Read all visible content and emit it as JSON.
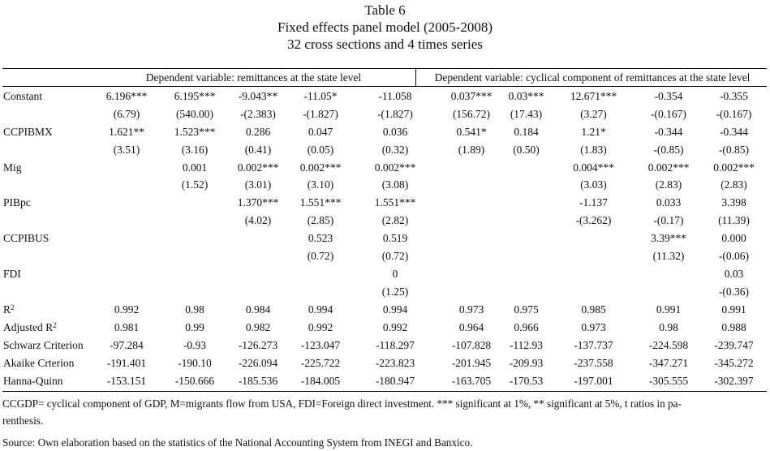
{
  "title": {
    "line1": "Table 6",
    "line2": "Fixed effects panel model (2005-2008)",
    "line3": "32 cross sections and 4 times series"
  },
  "headers": {
    "left": "Dependent variable: remittances at the state level",
    "right": "Dependent variable: cyclical component of remittances at the state level"
  },
  "rows": [
    {
      "label": "Constant",
      "values": [
        "6.196***",
        "6.195***",
        "-9.043**",
        "-11.05*",
        "-11.058",
        "0.037***",
        "0.03***",
        "12.671***",
        "-0.354",
        "-0.355"
      ]
    },
    {
      "label": "",
      "values": [
        "(6.79)",
        "(540.00)",
        "-(2.383)",
        "-(1.827)",
        "-(1.827)",
        "(156.72)",
        "(17.43)",
        "(3.27)",
        "-(0.167)",
        "-(0.167)"
      ]
    },
    {
      "label": "CCPIBMX",
      "values": [
        "1.621**",
        "1.523***",
        "0.286",
        "0.047",
        "0.036",
        "0.541*",
        "0.184",
        "1.21*",
        "-0.344",
        "-0.344"
      ]
    },
    {
      "label": "",
      "values": [
        "(3.51)",
        "(3.16)",
        "(0.41)",
        "(0.05)",
        "(0.32)",
        "(1.89)",
        "(0.50)",
        "(1.83)",
        "-(0.85)",
        "-(0.85)"
      ]
    },
    {
      "label": "Mig",
      "values": [
        "",
        "0.001",
        "0.002***",
        "0.002***",
        "0.002***",
        "",
        "",
        "0.004***",
        "0.002***",
        "0.002***"
      ]
    },
    {
      "label": "",
      "values": [
        "",
        "(1.52)",
        "(3.01)",
        "(3.10)",
        "(3.08)",
        "",
        "",
        "(3.03)",
        "(2.83)",
        "(2.83)"
      ]
    },
    {
      "label": "PIBpc",
      "values": [
        "",
        "",
        "1.370***",
        "1.551***",
        "1.551***",
        "",
        "",
        "-1.137",
        "0.033",
        "3.398"
      ]
    },
    {
      "label": "",
      "values": [
        "",
        "",
        "(4.02)",
        "(2.85)",
        "(2.82)",
        "",
        "",
        "-(3.262)",
        "-(0.17)",
        "(11.39)"
      ]
    },
    {
      "label": "CCPIBUS",
      "values": [
        "",
        "",
        "",
        "0.523",
        "0.519",
        "",
        "",
        "",
        "3.39***",
        "0.000"
      ]
    },
    {
      "label": "",
      "values": [
        "",
        "",
        "",
        "(0.72)",
        "(0.72)",
        "",
        "",
        "",
        "(11.32)",
        "-(0.06)"
      ]
    },
    {
      "label": "FDI",
      "values": [
        "",
        "",
        "",
        "",
        "0",
        "",
        "",
        "",
        "",
        "0.03"
      ]
    },
    {
      "label": "",
      "values": [
        "",
        "",
        "",
        "",
        "(1.25)",
        "",
        "",
        "",
        "",
        "-(0.36)"
      ]
    }
  ],
  "fit_rows": [
    {
      "label": "R",
      "sup": "2",
      "values": [
        "0.992",
        "0.98",
        "0.984",
        "0.994",
        "0.994",
        "0.973",
        "0.975",
        "0.985",
        "0.991",
        "0.991"
      ]
    },
    {
      "label": "Adjusted R",
      "sup": "2",
      "values": [
        "0.981",
        "0.99",
        "0.982",
        "0.992",
        "0.992",
        "0.964",
        "0.966",
        "0.973",
        "0.98",
        "0.988"
      ]
    },
    {
      "label": " Schwarz Criterion",
      "sup": "",
      "values": [
        "-97.284",
        "-0.93",
        "-126.273",
        "-123.047",
        "-118.297",
        "-107.828",
        "-112.93",
        "-137.737",
        "-224.598",
        "-239.747"
      ]
    },
    {
      "label": "Akaike Crterion",
      "sup": "",
      "values": [
        "-191.401",
        "-190.10",
        "-226.094",
        "-225.722",
        "-223.823",
        "-201.945",
        "-209.93",
        "-237.558",
        "-347.271",
        "-345.272"
      ]
    },
    {
      "label": "Hanna-Quinn",
      "sup": "",
      "values": [
        "-153.151",
        "-150.666",
        "-185.536",
        "-184.005",
        "-180.947",
        "-163.705",
        "-170.53",
        "-197.001",
        "-305.555",
        "-302.397"
      ]
    }
  ],
  "notes": {
    "line1": "CCGDP= cyclical component of GDP, M=migrants flow from USA, FDI=Foreign direct investment. *** significant at 1%, ** significant at 5%, t ratios in pa-",
    "line2": "renthesis.",
    "source": "Source: Own elaboration based on the statistics of the National Accounting System from INEGI and Banxico."
  }
}
